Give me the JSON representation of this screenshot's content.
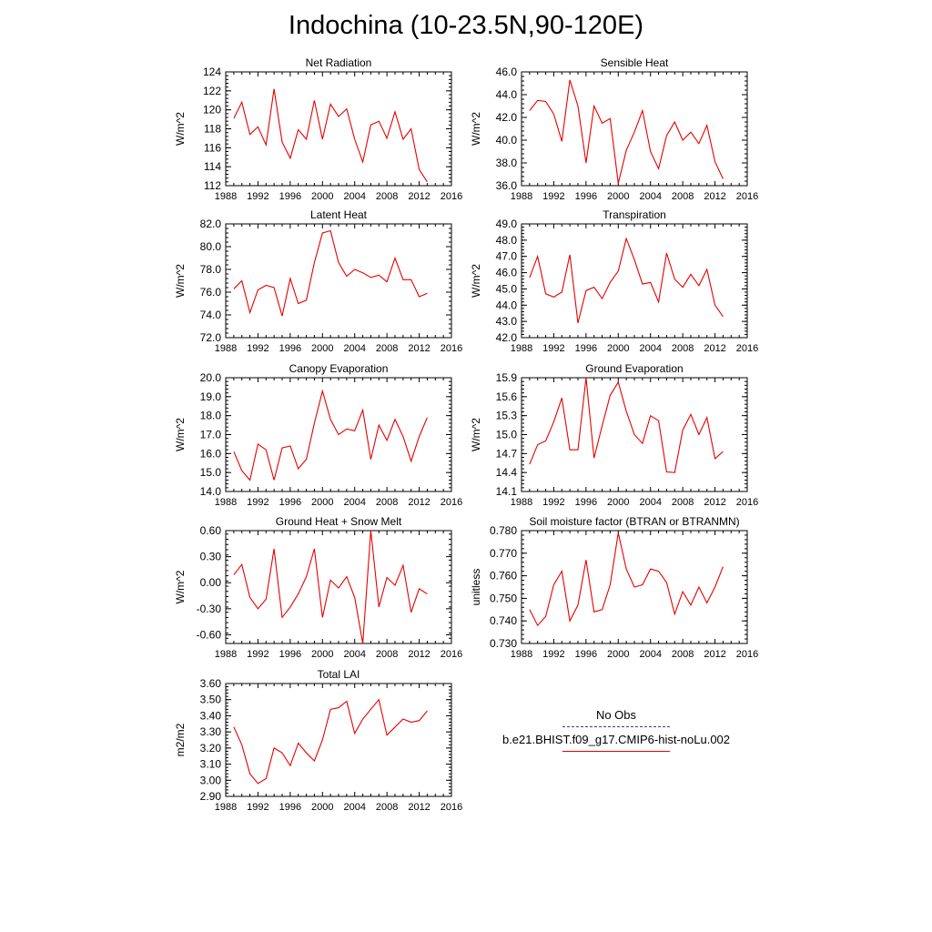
{
  "title": "Indochina (10-23.5N,90-120E)",
  "colors": {
    "model": "#e60000",
    "obs": "#3b3b8a",
    "axis": "#000000"
  },
  "legend": {
    "obs_label": "No Obs",
    "model_label": "b.e21.BHIST.f09_g17.CMIP6-hist-noLu.002"
  },
  "chart_data": [
    {
      "type": "line",
      "title": "Net Radiation",
      "ylabel": "W/m^2",
      "xlim": [
        1988,
        2016
      ],
      "ylim": [
        112,
        124
      ],
      "xticks": [
        1988,
        1992,
        1996,
        2000,
        2004,
        2008,
        2012,
        2016
      ],
      "xtick_labels": [
        "1988",
        "1992",
        "1996",
        "2000",
        "2004",
        "2008",
        "2012",
        "2016"
      ],
      "yticks": [
        112,
        114,
        116,
        118,
        120,
        122,
        124
      ],
      "ytick_labels": [
        "112",
        "114",
        "116",
        "118",
        "120",
        "122",
        "124"
      ],
      "x": [
        1989,
        1990,
        1991,
        1992,
        1993,
        1994,
        1995,
        1996,
        1997,
        1998,
        1999,
        2000,
        2001,
        2002,
        2003,
        2004,
        2005,
        2006,
        2007,
        2008,
        2009,
        2010,
        2011,
        2012,
        2013
      ],
      "series": [
        {
          "name": "b.e21.BHIST.f09_g17.CMIP6-hist-noLu.002",
          "values": [
            119.1,
            120.8,
            117.4,
            118.2,
            116.3,
            122.2,
            116.6,
            114.9,
            117.9,
            116.9,
            121.0,
            116.9,
            120.6,
            119.3,
            120.1,
            116.9,
            114.5,
            118.4,
            118.8,
            117.0,
            119.8,
            116.9,
            118.0,
            113.7,
            112.4
          ]
        }
      ]
    },
    {
      "type": "line",
      "title": "Sensible Heat",
      "ylabel": "W/m^2",
      "xlim": [
        1988,
        2016
      ],
      "ylim": [
        36.0,
        46.0
      ],
      "xticks": [
        1988,
        1992,
        1996,
        2000,
        2004,
        2008,
        2012,
        2016
      ],
      "xtick_labels": [
        "1988",
        "1992",
        "1996",
        "2000",
        "2004",
        "2008",
        "2012",
        "2016"
      ],
      "yticks": [
        36,
        38,
        40,
        42,
        44,
        46
      ],
      "ytick_labels": [
        "36.0",
        "38.0",
        "40.0",
        "42.0",
        "44.0",
        "46.0"
      ],
      "x": [
        1989,
        1990,
        1991,
        1992,
        1993,
        1994,
        1995,
        1996,
        1997,
        1998,
        1999,
        2000,
        2001,
        2002,
        2003,
        2004,
        2005,
        2006,
        2007,
        2008,
        2009,
        2010,
        2011,
        2012,
        2013
      ],
      "series": [
        {
          "name": "b.e21.BHIST.f09_g17.CMIP6-hist-noLu.002",
          "values": [
            42.6,
            43.5,
            43.4,
            42.3,
            39.9,
            45.3,
            43.0,
            38.0,
            43.0,
            41.5,
            41.9,
            36.2,
            39.1,
            40.7,
            42.6,
            39.0,
            37.5,
            40.4,
            41.6,
            40.0,
            40.7,
            39.7,
            41.3,
            38.1,
            36.6
          ]
        }
      ]
    },
    {
      "type": "line",
      "title": "Latent Heat",
      "ylabel": "W/m^2",
      "xlim": [
        1988,
        2016
      ],
      "ylim": [
        72.0,
        82.0
      ],
      "xticks": [
        1988,
        1992,
        1996,
        2000,
        2004,
        2008,
        2012,
        2016
      ],
      "xtick_labels": [
        "1988",
        "1992",
        "1996",
        "2000",
        "2004",
        "2008",
        "2012",
        "2016"
      ],
      "yticks": [
        72,
        74,
        76,
        78,
        80,
        82
      ],
      "ytick_labels": [
        "72.0",
        "74.0",
        "76.0",
        "78.0",
        "80.0",
        "82.0"
      ],
      "x": [
        1989,
        1990,
        1991,
        1992,
        1993,
        1994,
        1995,
        1996,
        1997,
        1998,
        1999,
        2000,
        2001,
        2002,
        2003,
        2004,
        2005,
        2006,
        2007,
        2008,
        2009,
        2010,
        2011,
        2012,
        2013
      ],
      "series": [
        {
          "name": "b.e21.BHIST.f09_g17.CMIP6-hist-noLu.002",
          "values": [
            76.3,
            77.0,
            74.2,
            76.2,
            76.6,
            76.4,
            73.9,
            77.2,
            75.0,
            75.3,
            78.6,
            81.2,
            81.4,
            78.6,
            77.4,
            78.0,
            77.7,
            77.3,
            77.5,
            76.9,
            79.0,
            77.1,
            77.1,
            75.6,
            75.9
          ]
        }
      ]
    },
    {
      "type": "line",
      "title": "Transpiration",
      "ylabel": "W/m^2",
      "xlim": [
        1988,
        2016
      ],
      "ylim": [
        42.0,
        49.0
      ],
      "xticks": [
        1988,
        1992,
        1996,
        2000,
        2004,
        2008,
        2012,
        2016
      ],
      "xtick_labels": [
        "1988",
        "1992",
        "1996",
        "2000",
        "2004",
        "2008",
        "2012",
        "2016"
      ],
      "yticks": [
        42,
        43,
        44,
        45,
        46,
        47,
        48,
        49
      ],
      "ytick_labels": [
        "42.0",
        "43.0",
        "44.0",
        "45.0",
        "46.0",
        "47.0",
        "48.0",
        "49.0"
      ],
      "x": [
        1989,
        1990,
        1991,
        1992,
        1993,
        1994,
        1995,
        1996,
        1997,
        1998,
        1999,
        2000,
        2001,
        2002,
        2003,
        2004,
        2005,
        2006,
        2007,
        2008,
        2009,
        2010,
        2011,
        2012,
        2013
      ],
      "series": [
        {
          "name": "b.e21.BHIST.f09_g17.CMIP6-hist-noLu.002",
          "values": [
            45.7,
            47.0,
            44.7,
            44.5,
            44.8,
            47.1,
            42.9,
            44.9,
            45.1,
            44.4,
            45.4,
            46.1,
            48.1,
            46.8,
            45.3,
            45.4,
            44.2,
            47.2,
            45.6,
            45.1,
            45.9,
            45.2,
            46.2,
            44.0,
            43.3
          ]
        }
      ]
    },
    {
      "type": "line",
      "title": "Canopy Evaporation",
      "ylabel": "W/m^2",
      "xlim": [
        1988,
        2016
      ],
      "ylim": [
        14.0,
        20.0
      ],
      "xticks": [
        1988,
        1992,
        1996,
        2000,
        2004,
        2008,
        2012,
        2016
      ],
      "xtick_labels": [
        "1988",
        "1992",
        "1996",
        "2000",
        "2004",
        "2008",
        "2012",
        "2016"
      ],
      "yticks": [
        14,
        15,
        16,
        17,
        18,
        19,
        20
      ],
      "ytick_labels": [
        "14.0",
        "15.0",
        "16.0",
        "17.0",
        "18.0",
        "19.0",
        "20.0"
      ],
      "x": [
        1989,
        1990,
        1991,
        1992,
        1993,
        1994,
        1995,
        1996,
        1997,
        1998,
        1999,
        2000,
        2001,
        2002,
        2003,
        2004,
        2005,
        2006,
        2007,
        2008,
        2009,
        2010,
        2011,
        2012,
        2013
      ],
      "series": [
        {
          "name": "b.e21.BHIST.f09_g17.CMIP6-hist-noLu.002",
          "values": [
            16.1,
            15.1,
            14.6,
            16.5,
            16.2,
            14.6,
            16.3,
            16.4,
            15.2,
            15.7,
            17.6,
            19.3,
            17.8,
            17.0,
            17.3,
            17.2,
            18.3,
            15.7,
            17.5,
            16.7,
            17.8,
            16.9,
            15.6,
            16.9,
            17.9
          ]
        }
      ]
    },
    {
      "type": "line",
      "title": "Ground Evaporation",
      "ylabel": "W/m^2",
      "xlim": [
        1988,
        2016
      ],
      "ylim": [
        14.1,
        15.9
      ],
      "xticks": [
        1988,
        1992,
        1996,
        2000,
        2004,
        2008,
        2012,
        2016
      ],
      "xtick_labels": [
        "1988",
        "1992",
        "1996",
        "2000",
        "2004",
        "2008",
        "2012",
        "2016"
      ],
      "yticks": [
        14.1,
        14.4,
        14.7,
        15.0,
        15.3,
        15.6,
        15.9
      ],
      "ytick_labels": [
        "14.1",
        "14.4",
        "14.7",
        "15.0",
        "15.3",
        "15.6",
        "15.9"
      ],
      "x": [
        1989,
        1990,
        1991,
        1992,
        1993,
        1994,
        1995,
        1996,
        1997,
        1998,
        1999,
        2000,
        2001,
        2002,
        2003,
        2004,
        2005,
        2006,
        2007,
        2008,
        2009,
        2010,
        2011,
        2012,
        2013
      ],
      "series": [
        {
          "name": "b.e21.BHIST.f09_g17.CMIP6-hist-noLu.002",
          "values": [
            14.53,
            14.84,
            14.9,
            15.2,
            15.58,
            14.76,
            14.76,
            15.9,
            14.63,
            15.14,
            15.62,
            15.83,
            15.37,
            15.0,
            14.86,
            15.3,
            15.22,
            14.41,
            14.4,
            15.07,
            15.32,
            15.0,
            15.27,
            14.62,
            14.73
          ]
        }
      ]
    },
    {
      "type": "line",
      "title": "Ground Heat + Snow Melt",
      "ylabel": "W/m^2",
      "xlim": [
        1988,
        2016
      ],
      "ylim": [
        -0.7,
        0.6
      ],
      "xticks": [
        1988,
        1992,
        1996,
        2000,
        2004,
        2008,
        2012,
        2016
      ],
      "xtick_labels": [
        "1988",
        "1992",
        "1996",
        "2000",
        "2004",
        "2008",
        "2012",
        "2016"
      ],
      "yticks": [
        -0.6,
        -0.3,
        0.0,
        0.3,
        0.6
      ],
      "ytick_labels": [
        "-0.60",
        "-0.30",
        "0.00",
        "0.30",
        "0.60"
      ],
      "x": [
        1989,
        1990,
        1991,
        1992,
        1993,
        1994,
        1995,
        1996,
        1997,
        1998,
        1999,
        2000,
        2001,
        2002,
        2003,
        2004,
        2005,
        2006,
        2007,
        2008,
        2009,
        2010,
        2011,
        2012,
        2013
      ],
      "series": [
        {
          "name": "b.e21.BHIST.f09_g17.CMIP6-hist-noLu.002",
          "values": [
            0.09,
            0.21,
            -0.17,
            -0.3,
            -0.19,
            0.39,
            -0.4,
            -0.28,
            -0.13,
            0.07,
            0.39,
            -0.4,
            0.03,
            -0.06,
            0.07,
            -0.17,
            -0.7,
            0.6,
            -0.28,
            0.06,
            -0.03,
            0.2,
            -0.34,
            -0.07,
            -0.13
          ]
        }
      ]
    },
    {
      "type": "line",
      "title": "Soil moisture factor (BTRAN or BTRANMN)",
      "ylabel": "unitless",
      "xlim": [
        1988,
        2016
      ],
      "ylim": [
        0.73,
        0.78
      ],
      "xticks": [
        1988,
        1992,
        1996,
        2000,
        2004,
        2008,
        2012,
        2016
      ],
      "xtick_labels": [
        "1988",
        "1992",
        "1996",
        "2000",
        "2004",
        "2008",
        "2012",
        "2016"
      ],
      "yticks": [
        0.73,
        0.74,
        0.75,
        0.76,
        0.77,
        0.78
      ],
      "ytick_labels": [
        "0.730",
        "0.740",
        "0.750",
        "0.760",
        "0.770",
        "0.780"
      ],
      "x": [
        1989,
        1990,
        1991,
        1992,
        1993,
        1994,
        1995,
        1996,
        1997,
        1998,
        1999,
        2000,
        2001,
        2002,
        2003,
        2004,
        2005,
        2006,
        2007,
        2008,
        2009,
        2010,
        2011,
        2012,
        2013
      ],
      "series": [
        {
          "name": "b.e21.BHIST.f09_g17.CMIP6-hist-noLu.002",
          "values": [
            0.745,
            0.738,
            0.742,
            0.756,
            0.762,
            0.74,
            0.747,
            0.767,
            0.744,
            0.745,
            0.756,
            0.779,
            0.763,
            0.755,
            0.756,
            0.763,
            0.762,
            0.757,
            0.743,
            0.753,
            0.747,
            0.755,
            0.748,
            0.755,
            0.764
          ]
        }
      ]
    },
    {
      "type": "line",
      "title": "Total LAI",
      "ylabel": "m2/m2",
      "xlim": [
        1988,
        2016
      ],
      "ylim": [
        2.9,
        3.6
      ],
      "xticks": [
        1988,
        1992,
        1996,
        2000,
        2004,
        2008,
        2012,
        2016
      ],
      "xtick_labels": [
        "1988",
        "1992",
        "1996",
        "2000",
        "2004",
        "2008",
        "2012",
        "2016"
      ],
      "yticks": [
        2.9,
        3.0,
        3.1,
        3.2,
        3.3,
        3.4,
        3.5,
        3.6
      ],
      "ytick_labels": [
        "2.90",
        "3.00",
        "3.10",
        "3.20",
        "3.30",
        "3.40",
        "3.50",
        "3.60"
      ],
      "x": [
        1989,
        1990,
        1991,
        1992,
        1993,
        1994,
        1995,
        1996,
        1997,
        1998,
        1999,
        2000,
        2001,
        2002,
        2003,
        2004,
        2005,
        2006,
        2007,
        2008,
        2009,
        2010,
        2011,
        2012,
        2013
      ],
      "series": [
        {
          "name": "b.e21.BHIST.f09_g17.CMIP6-hist-noLu.002",
          "values": [
            3.33,
            3.22,
            3.04,
            2.98,
            3.01,
            3.2,
            3.17,
            3.09,
            3.23,
            3.17,
            3.12,
            3.25,
            3.44,
            3.45,
            3.49,
            3.29,
            3.38,
            3.44,
            3.5,
            3.28,
            3.33,
            3.38,
            3.36,
            3.37,
            3.43
          ]
        }
      ]
    }
  ]
}
